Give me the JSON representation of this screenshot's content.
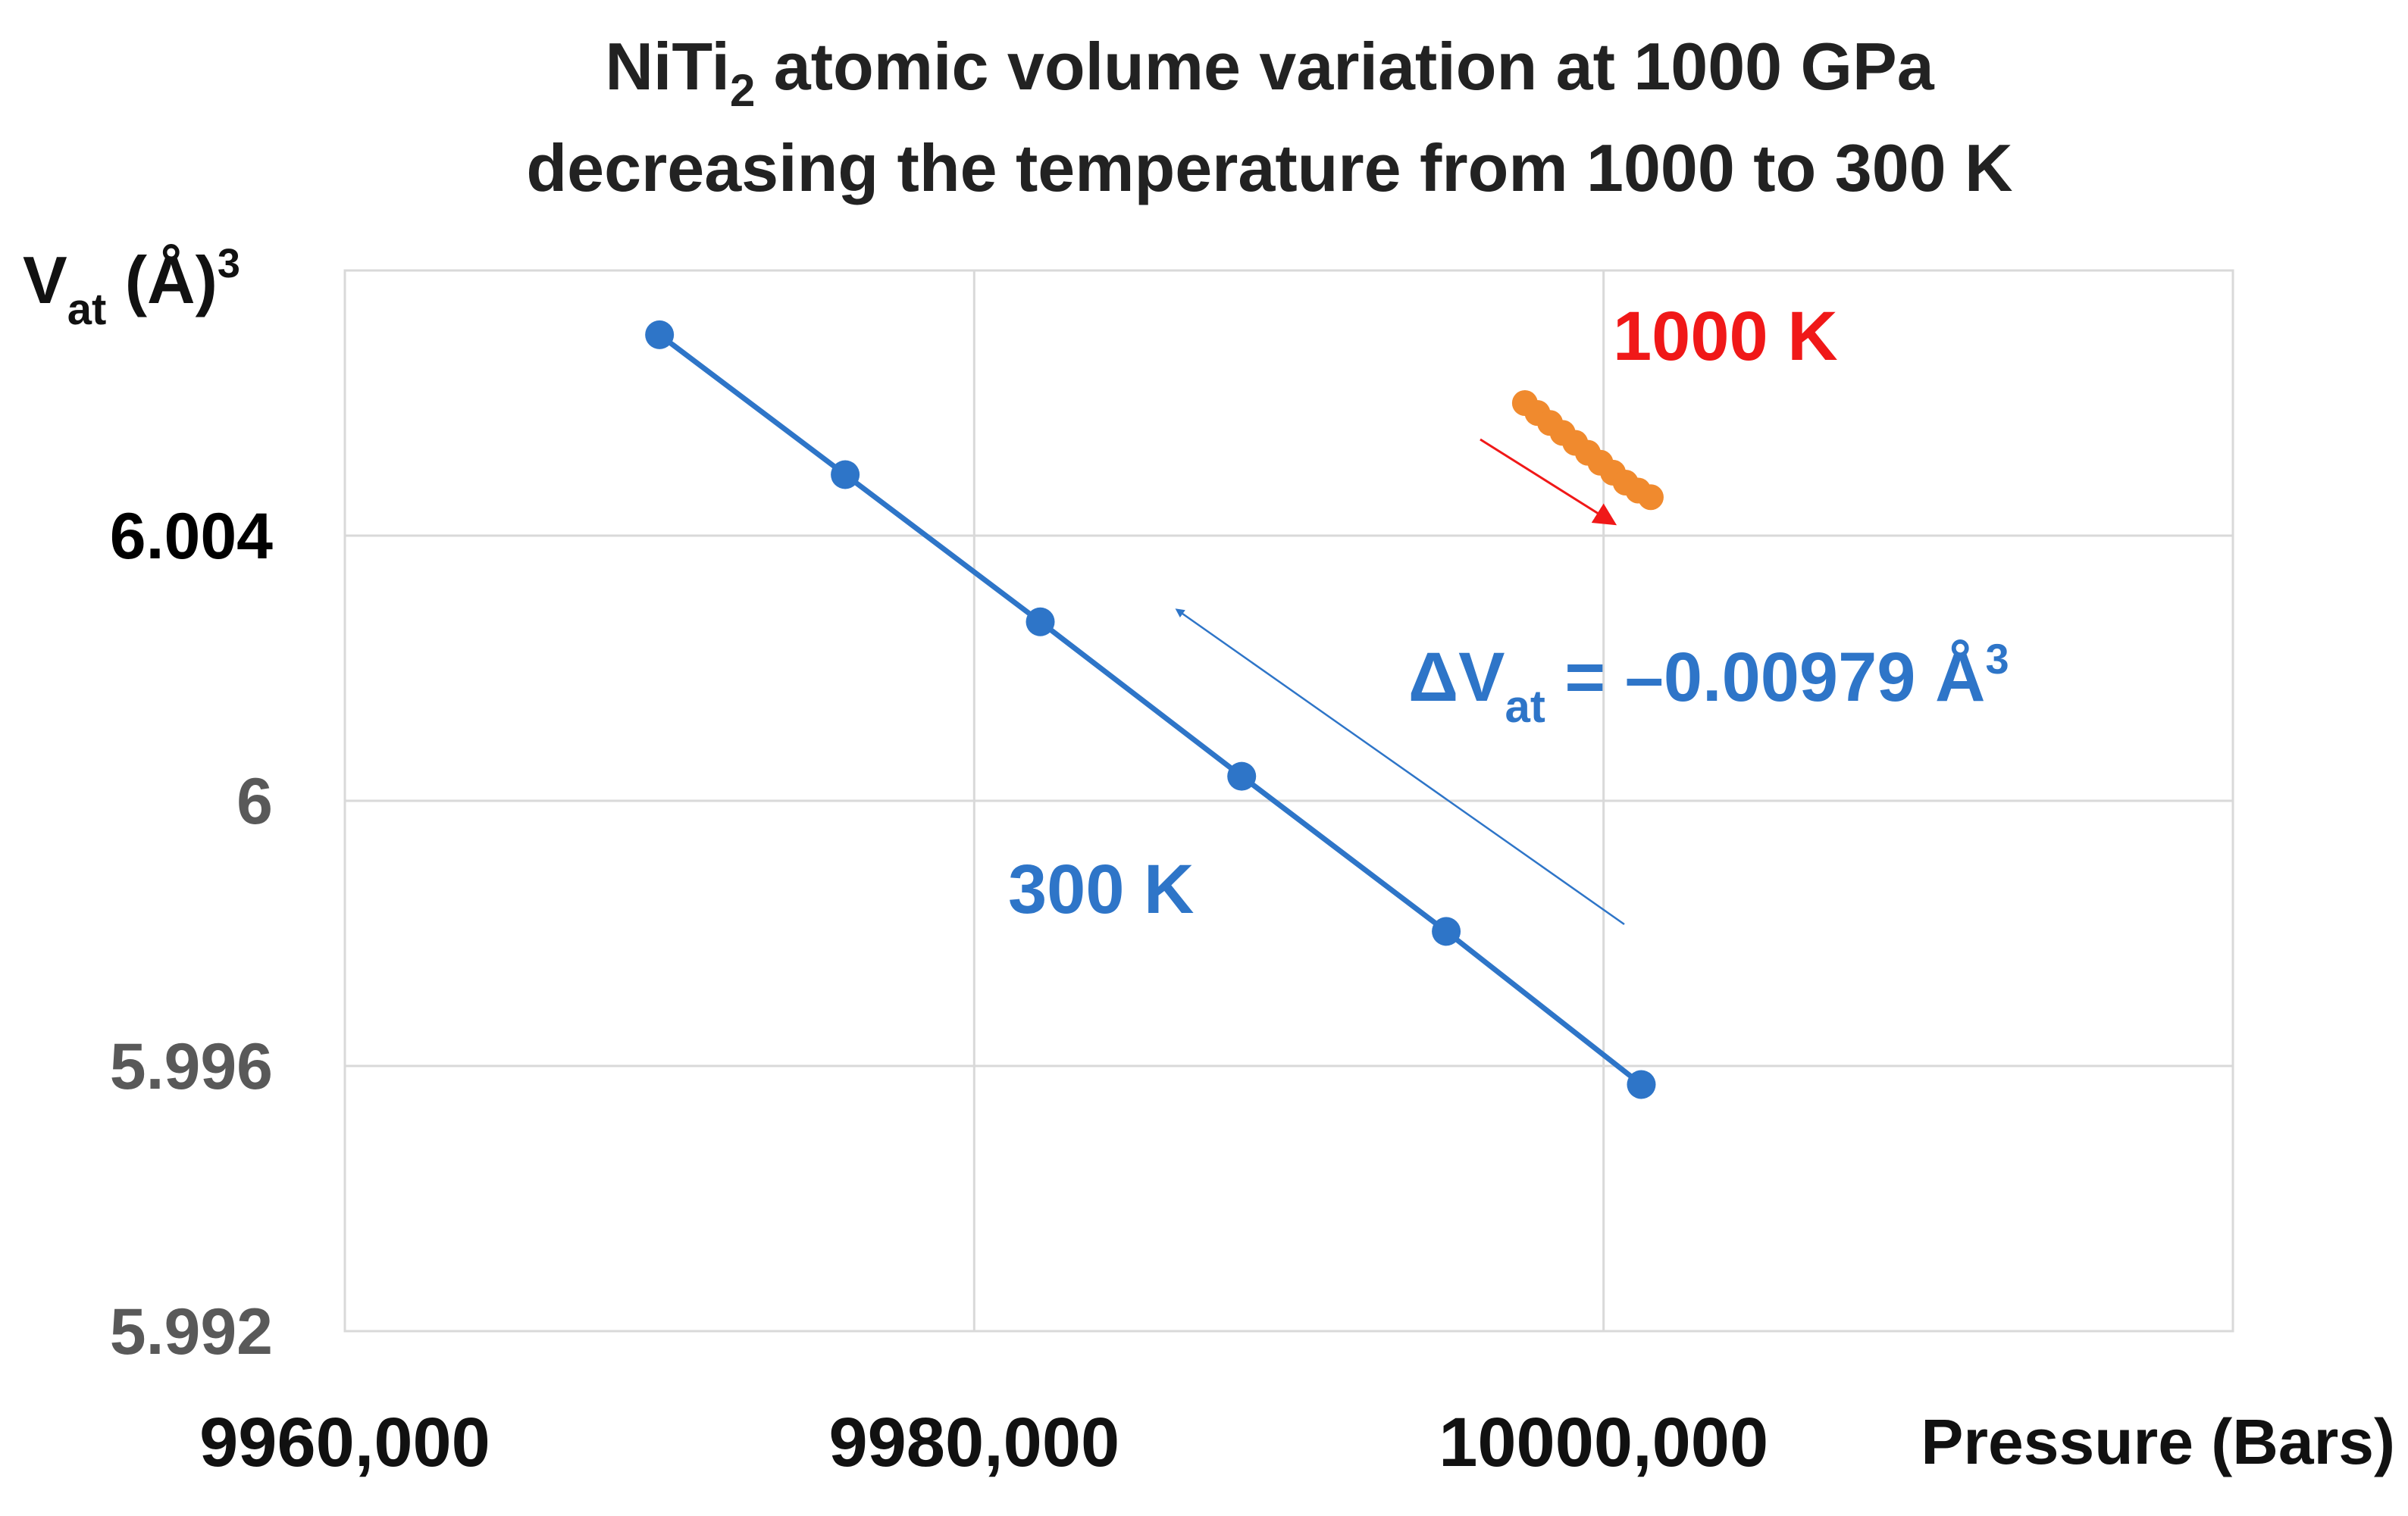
{
  "chart_data": {
    "type": "scatter",
    "title": {
      "line1_prefix": "NiTi",
      "line1_sub": "2",
      "line1_suffix": " atomic volume variation at 1000 GPa",
      "line2": "decreasing the temperature from 1000 to 300 K"
    },
    "ylabel": {
      "main": "V",
      "sub": "at",
      "unit": " (Å)",
      "sup": "3"
    },
    "xlabel": "Pressure (Bars)",
    "xlim": [
      9960000,
      10020000
    ],
    "ylim": [
      5.992,
      6.008
    ],
    "xticks": [
      {
        "value": 9960000,
        "label": "9960,000"
      },
      {
        "value": 9980000,
        "label": "9980,000"
      },
      {
        "value": 10000000,
        "label": "10000,000"
      }
    ],
    "yticks": [
      {
        "value": 6.004,
        "label": "6.004",
        "color": "#000000",
        "gridline": true
      },
      {
        "value": 6.0,
        "label": "6",
        "color": "#595959",
        "gridline": true
      },
      {
        "value": 5.996,
        "label": "5.996",
        "color": "#595959",
        "gridline": true
      },
      {
        "value": 5.992,
        "label": "5.992",
        "color": "#595959",
        "gridline": false
      }
    ],
    "grid": true,
    "series": [
      {
        "name": "300 K",
        "color": "#2E75C8",
        "line": true,
        "x": [
          9970000,
          9975900,
          9982100,
          9988500,
          9995000,
          10001200
        ],
        "y": [
          6.00703,
          6.00492,
          6.0027,
          6.00037,
          5.99803,
          5.99572
        ]
      },
      {
        "name": "1000 K",
        "color": "#F08A2E",
        "line": false,
        "x": [
          9997500,
          9997900,
          9998300,
          9998700,
          9999100,
          9999500,
          9999900,
          10000300,
          10000700,
          10001100,
          10001500
        ],
        "y": [
          6.006,
          6.00585,
          6.0057,
          6.00555,
          6.0054,
          6.00525,
          6.0051,
          6.00495,
          6.0048,
          6.00468,
          6.00458
        ]
      }
    ],
    "annotations": {
      "label_1000k": {
        "text": "1000 K",
        "color": "#F01818"
      },
      "label_300k": {
        "text": "300 K",
        "color": "#2E75C8"
      },
      "delta": {
        "prefix": "ΔV",
        "sub": "at",
        "value": " = –0.00979 Å",
        "sup": "3",
        "color": "#2E75C8"
      },
      "red_arrow_color": "#F01818",
      "blue_arrow_color": "#2E75C8"
    }
  }
}
